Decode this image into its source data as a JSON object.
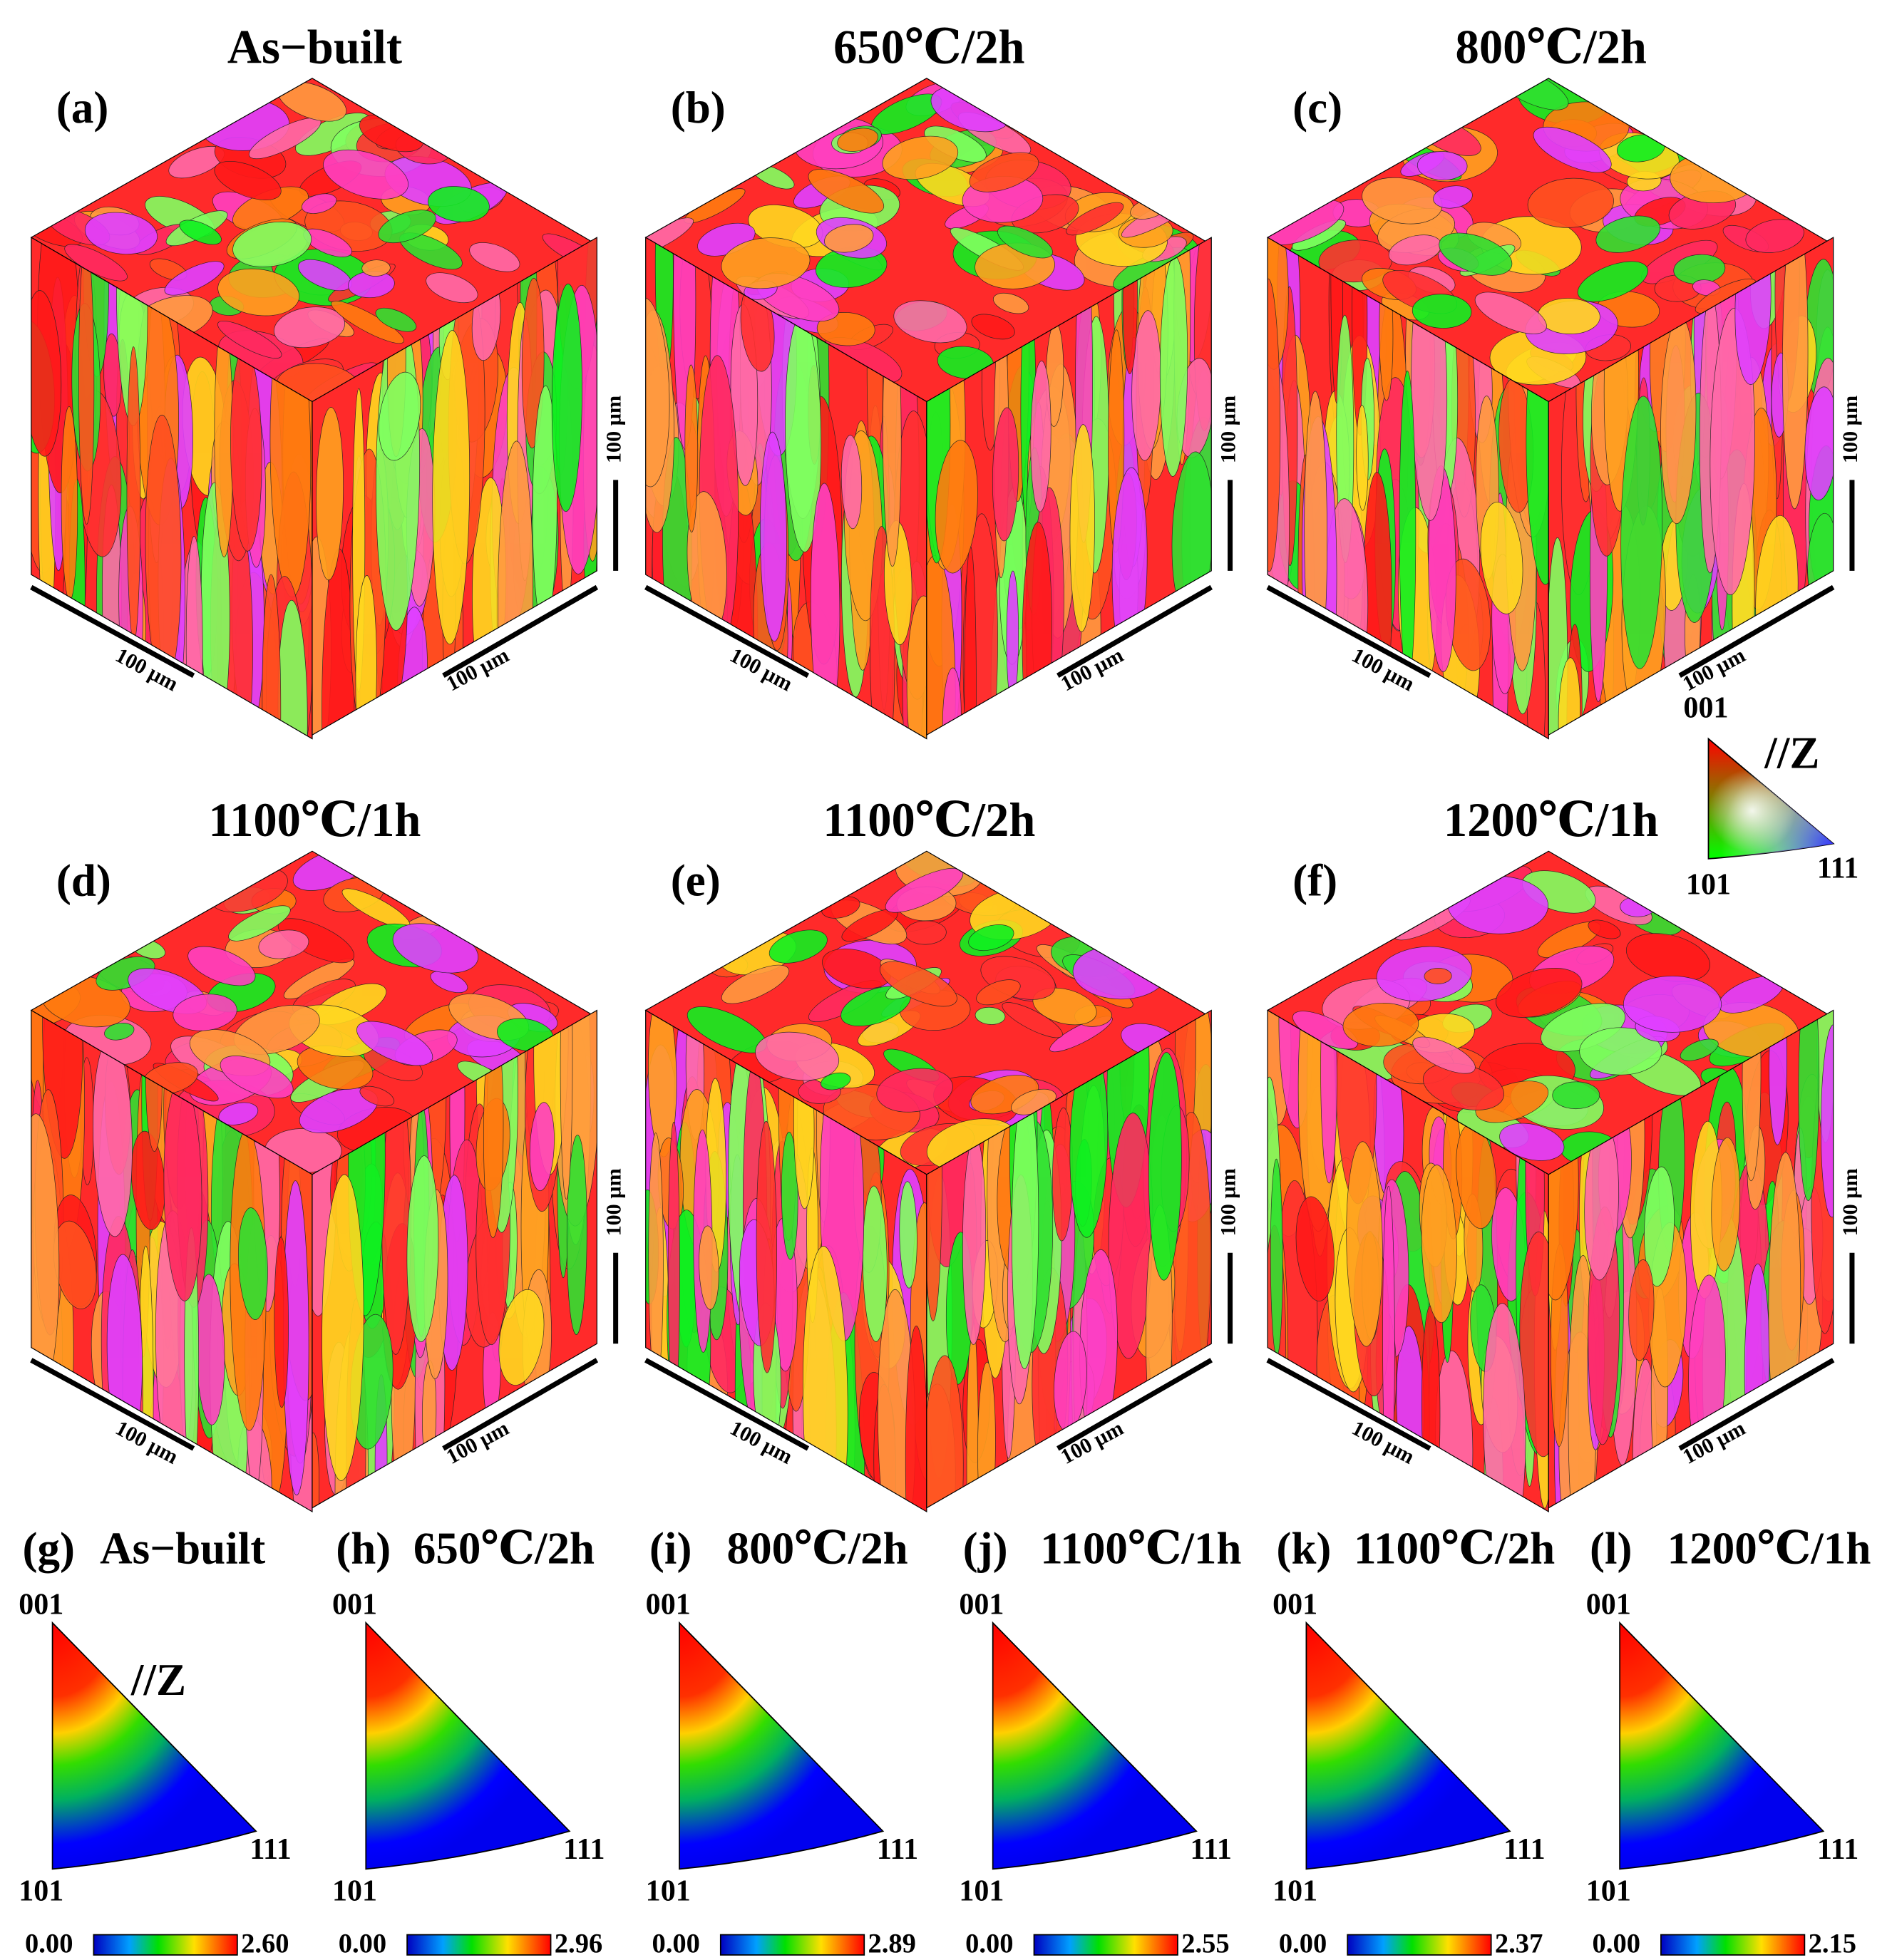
{
  "panels": [
    {
      "label": "(a)",
      "title": "As−built",
      "scale_left": "100 µm",
      "scale_right": "100 µm",
      "scale_height": "100 µm"
    },
    {
      "label": "(b)",
      "title": "650℃/2h",
      "scale_left": "100 µm",
      "scale_right": "100 µm",
      "scale_height": "100 µm"
    },
    {
      "label": "(c)",
      "title": "800℃/2h",
      "scale_left": "100 µm",
      "scale_right": "100 µm",
      "scale_height": "100 µm"
    },
    {
      "label": "(d)",
      "title": "1100℃/1h",
      "scale_left": "100 µm",
      "scale_right": "100 µm",
      "scale_height": "100 µm"
    },
    {
      "label": "(e)",
      "title": "1100℃/2h",
      "scale_left": "100 µm",
      "scale_right": "100 µm",
      "scale_height": "100 µm"
    },
    {
      "label": "(f)",
      "title": "1200℃/1h",
      "scale_left": "100 µm",
      "scale_right": "100 µm",
      "scale_height": "100 µm"
    }
  ],
  "ipf_key": {
    "top": "001",
    "left": "101",
    "right": "111",
    "axis": "//Z"
  },
  "pole_figures": [
    {
      "label": "(g)",
      "title": "As−built",
      "top": "001",
      "left": "101",
      "right": "111",
      "min": "0.00",
      "max": "2.60",
      "axis": "//Z"
    },
    {
      "label": "(h)",
      "title": "650℃/2h",
      "top": "001",
      "left": "101",
      "right": "111",
      "min": "0.00",
      "max": "2.96"
    },
    {
      "label": "(i)",
      "title": "800℃/2h",
      "top": "001",
      "left": "101",
      "right": "111",
      "min": "0.00",
      "max": "2.89"
    },
    {
      "label": "(j)",
      "title": "1100℃/1h",
      "top": "001",
      "left": "101",
      "right": "111",
      "min": "0.00",
      "max": "2.55"
    },
    {
      "label": "(k)",
      "title": "1100℃/2h",
      "top": "001",
      "left": "101",
      "right": "111",
      "min": "0.00",
      "max": "2.37"
    },
    {
      "label": "(l)",
      "title": "1200℃/1h",
      "top": "001",
      "left": "101",
      "right": "111",
      "min": "0.00",
      "max": "2.15"
    }
  ]
}
